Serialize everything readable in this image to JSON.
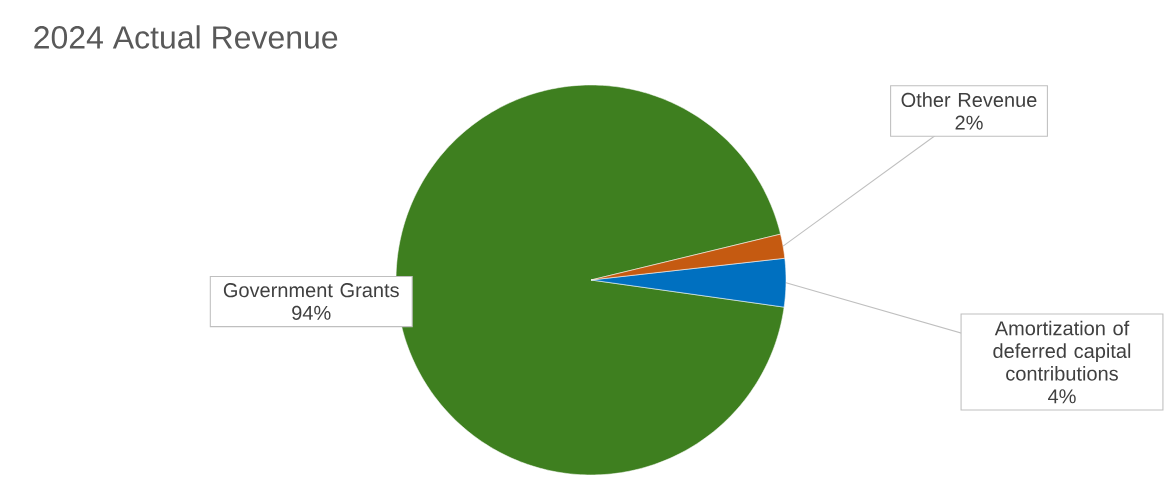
{
  "chart_data": {
    "type": "pie",
    "title": "2024 Actual Revenue",
    "categories": [
      "Government Grants",
      "Amortization of deferred capital contributions",
      "Other Revenue"
    ],
    "values": [
      94,
      4,
      2
    ],
    "value_labels": [
      "94%",
      "4%",
      "2%"
    ],
    "colors": [
      "#3e7f1f",
      "#0070c0",
      "#c55a11"
    ]
  }
}
